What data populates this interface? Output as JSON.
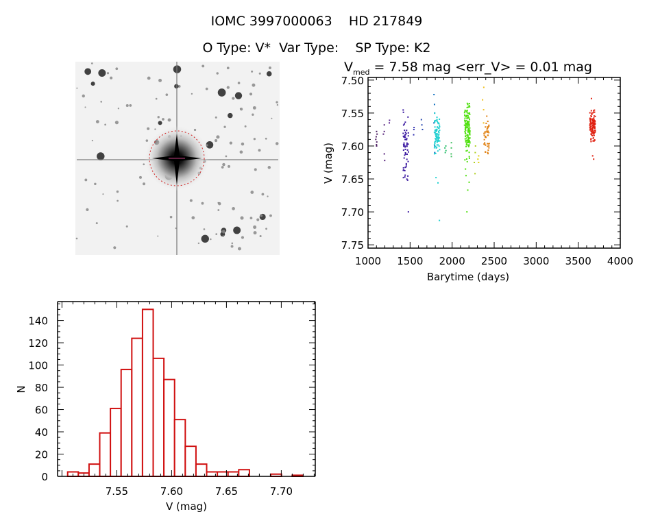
{
  "header": {
    "line1": "IOMC 3997000063    HD 217849",
    "line2": "O Type: V*  Var Type:    SP Type: K2"
  },
  "chart_data": [
    {
      "type": "scatter",
      "title_prefix": "V",
      "title_sub": "med",
      "title_rest": " = 7.58 mag <err_V> = 0.01 mag",
      "xlabel": "Barytime (days)",
      "ylabel": "V (mag)",
      "xlim": [
        1000,
        4000
      ],
      "ylim": [
        7.755,
        7.496
      ],
      "xticks": [
        1000,
        1500,
        2000,
        2500,
        3000,
        3500,
        4000
      ],
      "xtick_labels": [
        "1000",
        "1500",
        "2000",
        "2500",
        "3000",
        "3500",
        "4000"
      ],
      "yticks": [
        7.5,
        7.55,
        7.6,
        7.65,
        7.7,
        7.75
      ],
      "ytick_labels": [
        "7.50",
        "7.55",
        "7.60",
        "7.65",
        "7.70",
        "7.75"
      ],
      "y_inverted": true,
      "clusters": [
        {
          "time": 1100,
          "color": "#4a1a60",
          "mags": [
            7.578,
            7.582,
            7.586,
            7.59,
            7.594,
            7.598,
            7.6
          ]
        },
        {
          "time": 1190,
          "color": "#55207a",
          "mags": [
            7.568,
            7.578,
            7.582,
            7.612,
            7.622
          ]
        },
        {
          "time": 1250,
          "color": "#5a2090",
          "mags": [
            7.561,
            7.565
          ]
        },
        {
          "time": 1450,
          "color": "#3a18a0",
          "dense": {
            "range": [
              7.536,
              7.668
            ],
            "count": 60
          },
          "mags": [
            7.7
          ]
        },
        {
          "time": 1550,
          "color": "#3030b0",
          "mags": [
            7.572,
            7.575,
            7.583
          ]
        },
        {
          "time": 1640,
          "color": "#2848b0",
          "mags": [
            7.56,
            7.568,
            7.575
          ]
        },
        {
          "time": 1790,
          "color": "#1070c0",
          "mags": [
            7.522,
            7.537,
            7.55,
            7.565,
            7.58,
            7.6,
            7.61
          ]
        },
        {
          "time": 1820,
          "color": "#20d0d0",
          "dense": {
            "range": [
              7.545,
              7.62
            ],
            "count": 80
          },
          "mags": [
            7.648,
            7.656,
            7.713
          ]
        },
        {
          "time": 1920,
          "color": "#30c070",
          "mags": [
            7.6,
            7.603,
            7.607,
            7.61
          ]
        },
        {
          "time": 1990,
          "color": "#40c060",
          "mags": [
            7.595,
            7.603,
            7.612,
            7.616
          ]
        },
        {
          "time": 2180,
          "color": "#50e010",
          "dense": {
            "range": [
              7.518,
              7.63
            ],
            "count": 140
          },
          "mags": [
            7.635,
            7.645,
            7.655,
            7.667,
            7.7
          ]
        },
        {
          "time": 2270,
          "color": "#b0d020",
          "mags": [
            7.6,
            7.61,
            7.625,
            7.642
          ]
        },
        {
          "time": 2310,
          "color": "#e0d010",
          "mags": [
            7.615,
            7.62,
            7.625
          ]
        },
        {
          "time": 2370,
          "color": "#f0c020",
          "mags": [
            7.511,
            7.53,
            7.545,
            7.565
          ]
        },
        {
          "time": 2410,
          "color": "#e08010",
          "dense": {
            "range": [
              7.54,
              7.63
            ],
            "count": 40
          },
          "mags": []
        },
        {
          "time": 3670,
          "color": "#e02010",
          "dense": {
            "range": [
              7.537,
              7.605
            ],
            "count": 110
          },
          "mags": [
            7.528,
            7.615,
            7.62
          ]
        }
      ]
    },
    {
      "type": "bar",
      "subtype": "histogram",
      "xlabel": "V (mag)",
      "ylabel": "N",
      "xlim": [
        7.496,
        7.731
      ],
      "ylim": [
        0,
        157
      ],
      "bin_start": 7.5052,
      "bin_width": 0.00975,
      "counts": [
        4,
        3,
        11,
        39,
        61,
        96,
        124,
        150,
        106,
        87,
        51,
        27,
        11,
        4,
        4,
        4,
        6,
        0,
        0,
        2,
        0,
        1
      ],
      "bar_color": "#d01010",
      "xticks": [
        7.55,
        7.6,
        7.65,
        7.7
      ],
      "xtick_labels": [
        "7.55",
        "7.60",
        "7.65",
        "7.70"
      ],
      "yticks": [
        0,
        20,
        40,
        60,
        80,
        100,
        120,
        140
      ],
      "ytick_labels": [
        "0",
        "20",
        "40",
        "60",
        "80",
        "100",
        "120",
        "140"
      ]
    }
  ]
}
